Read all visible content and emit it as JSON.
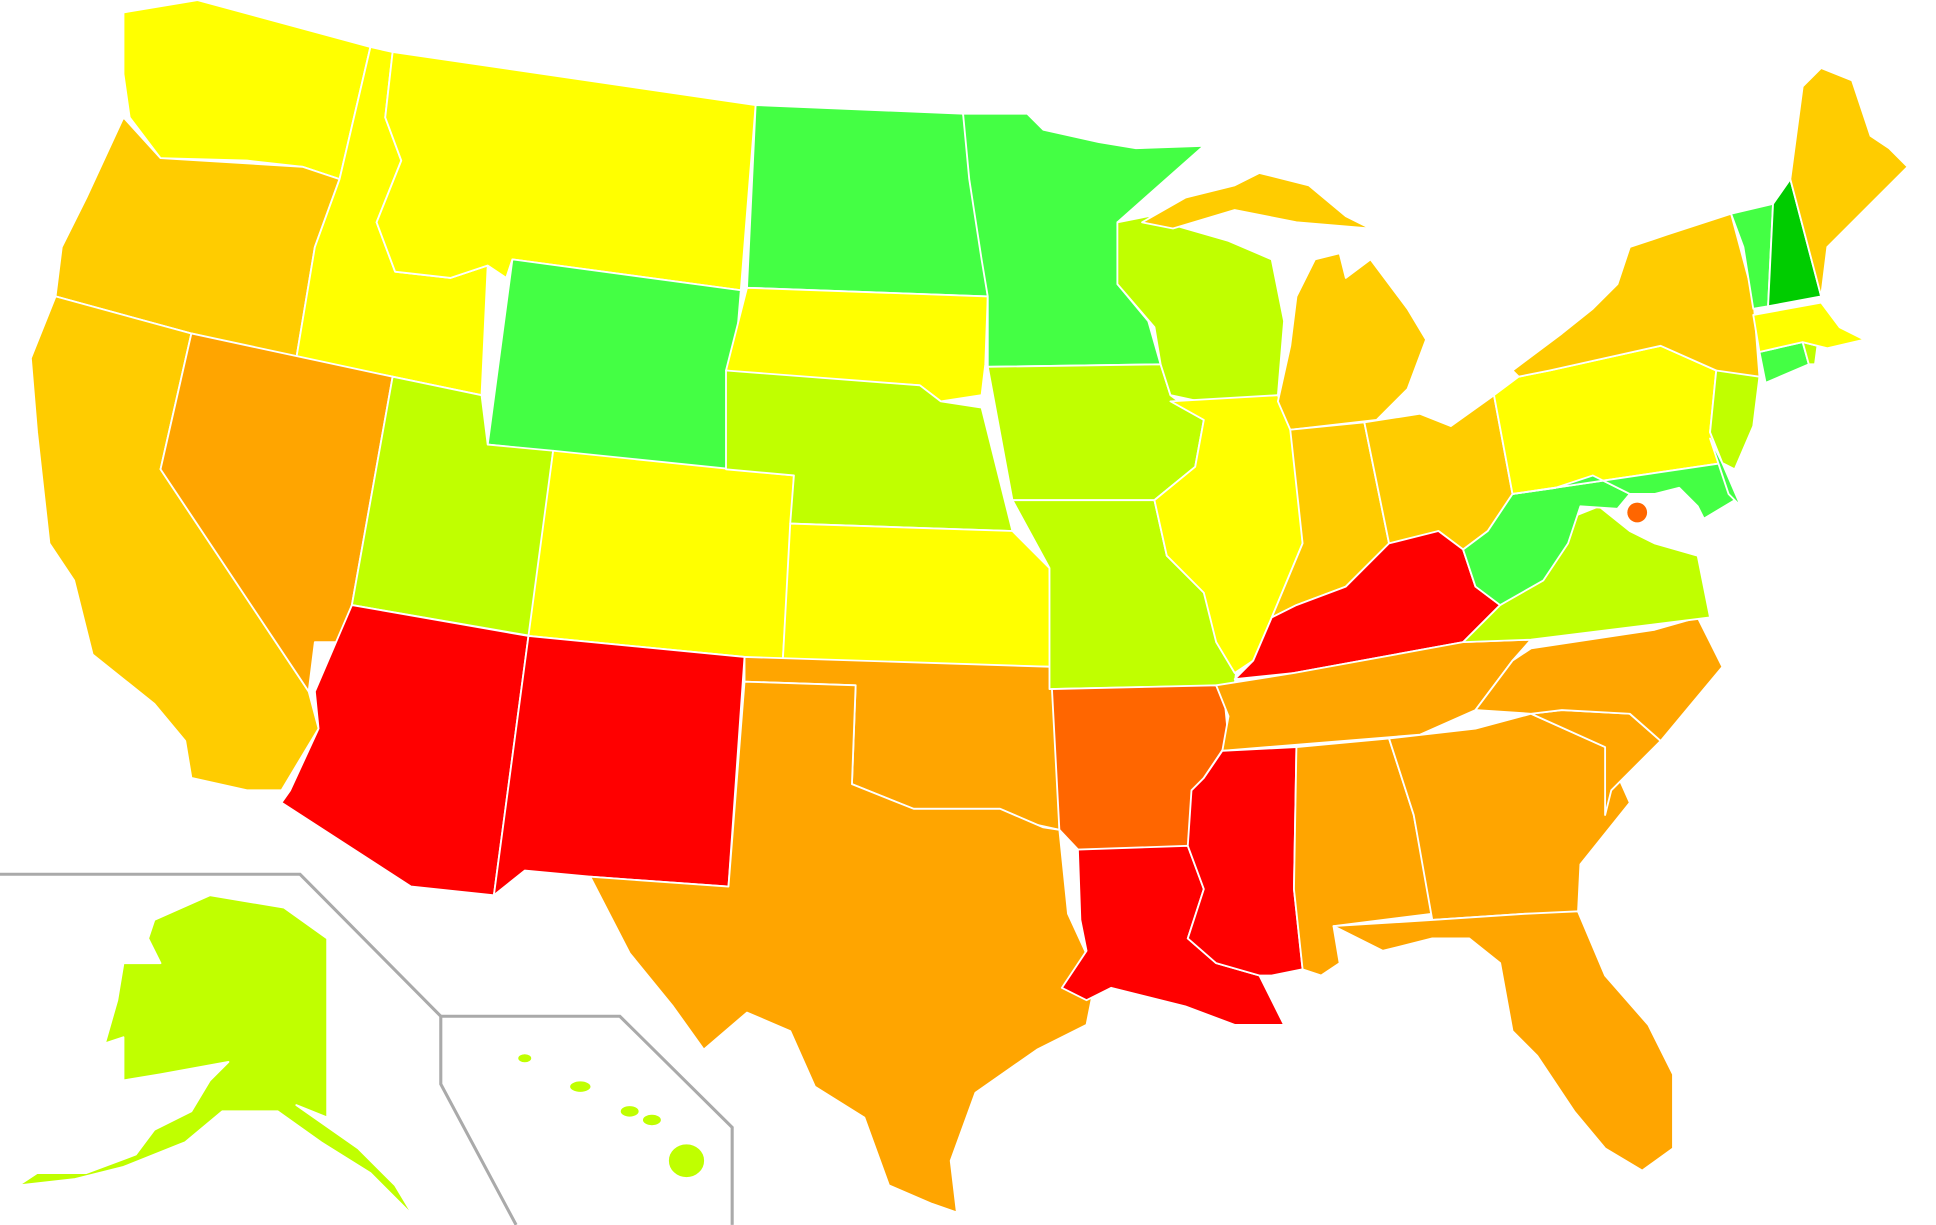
{
  "palette": {
    "red": "#ff0000",
    "orange_red": "#ff6600",
    "orange": "#ffa500",
    "gold": "#ffcc00",
    "yellow": "#ffff00",
    "yellow_green": "#c0ff00",
    "green": "#44ff44",
    "dark_green": "#00cc00"
  },
  "states": {
    "WA": "#ffff00",
    "OR": "#ffcc00",
    "CA": "#ffcc00",
    "ID": "#ffff00",
    "NV": "#ffa500",
    "MT": "#ffff00",
    "WY": "#44ff44",
    "UT": "#c0ff00",
    "CO": "#ffff00",
    "AZ": "#ff0000",
    "NM": "#ff0000",
    "ND": "#44ff44",
    "SD": "#ffff00",
    "NE": "#c0ff00",
    "KS": "#ffff00",
    "OK": "#ffa500",
    "TX": "#ffa500",
    "MN": "#44ff44",
    "IA": "#c0ff00",
    "MO": "#c0ff00",
    "AR": "#ff6600",
    "LA": "#ff0000",
    "WI": "#c0ff00",
    "IL": "#ffff00",
    "MI": "#ffcc00",
    "IN": "#ffcc00",
    "OH": "#ffcc00",
    "KY": "#ff0000",
    "TN": "#ffa500",
    "MS": "#ff0000",
    "AL": "#ffa500",
    "GA": "#ffa500",
    "FL": "#ffa500",
    "SC": "#ffa500",
    "NC": "#ffa500",
    "VA": "#c0ff00",
    "WV": "#44ff44",
    "PA": "#ffff00",
    "NY": "#ffcc00",
    "MD": "#44ff44",
    "DE": "#44ff44",
    "NJ": "#c0ff00",
    "CT": "#44ff44",
    "RI": "#c0ff00",
    "MA": "#ffff00",
    "VT": "#44ff44",
    "NH": "#00cc00",
    "ME": "#ffcc00",
    "DC": "#ff6600",
    "AK": "#c0ff00",
    "HI": "#c0ff00"
  }
}
